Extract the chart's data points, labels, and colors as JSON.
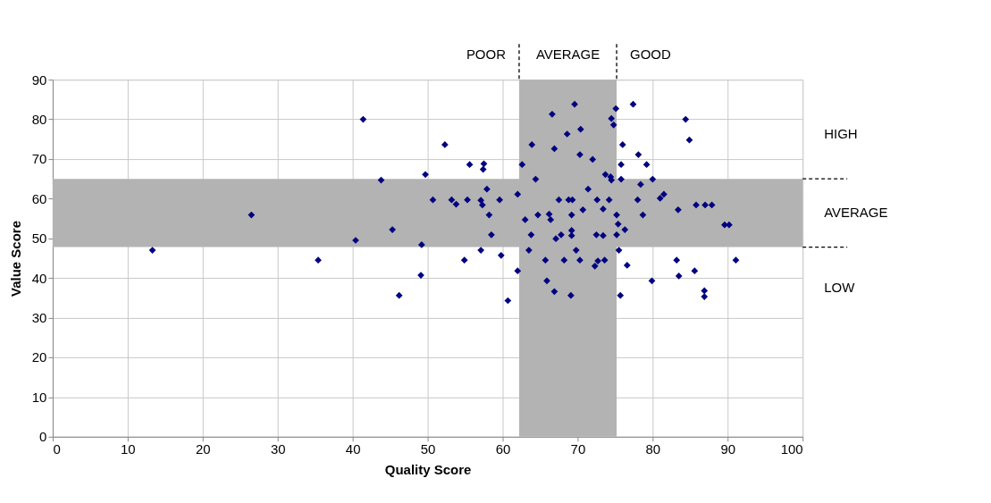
{
  "chart_data": {
    "type": "scatter",
    "xlabel": "Quality Score",
    "ylabel": "Value Score",
    "xlim": [
      0,
      100
    ],
    "xticks": [
      0,
      10,
      20,
      30,
      40,
      50,
      60,
      70,
      80,
      90,
      100
    ],
    "ylim": [
      0,
      90
    ],
    "yticks": [
      0,
      10,
      20,
      30,
      40,
      50,
      60,
      70,
      80,
      90
    ],
    "grid": true,
    "legend": false,
    "marker": "diamond",
    "bands": [
      {
        "axis": "x",
        "from": 62.2,
        "to": 75.2,
        "label": "AVERAGE",
        "color": "#b3b3b3"
      },
      {
        "axis": "y",
        "from": 47.8,
        "to": 65.0,
        "label": "AVERAGE",
        "color": "#b3b3b3"
      }
    ],
    "annotations": [
      "POOR",
      "GOOD",
      "HIGH",
      "LOW"
    ],
    "x": [
      13.3,
      26.5,
      41.4,
      52.3,
      55.6,
      57.5,
      57.4,
      49.7,
      43.8,
      57.9,
      50.7,
      53.2,
      53.8,
      55.3,
      57.1,
      57.3,
      59.6,
      58.2,
      45.3,
      58.5,
      40.4,
      49.2,
      57.1,
      59.8,
      54.9,
      35.4,
      49.1,
      46.2,
      60.7,
      69.6,
      66.6,
      75.1,
      77.4,
      74.5,
      74.8,
      70.4,
      68.6,
      63.9,
      66.9,
      76.0,
      70.3,
      72.0,
      78.1,
      79.2,
      62.6,
      75.8,
      73.7,
      74.4,
      74.5,
      75.8,
      64.4,
      80.0,
      71.4,
      78.4,
      62.0,
      67.5,
      68.8,
      69.3,
      72.6,
      74.2,
      78.0,
      81.0,
      81.5,
      83.4,
      70.7,
      73.4,
      64.7,
      66.2,
      66.4,
      69.2,
      75.2,
      78.7,
      63.0,
      75.4,
      76.3,
      63.8,
      67.1,
      67.8,
      69.2,
      69.2,
      72.5,
      73.4,
      75.2,
      63.5,
      69.8,
      75.5,
      65.7,
      68.2,
      70.3,
      72.7,
      73.6,
      72.3,
      76.6,
      83.2,
      62.0,
      79.9,
      83.5,
      65.9,
      66.9,
      69.1,
      75.7,
      84.4,
      84.9,
      85.8,
      87.0,
      87.9,
      89.6,
      90.2,
      91.1,
      85.6,
      86.9,
      86.9
    ],
    "series": [
      {
        "color": "#000080",
        "values": [
          47.0,
          55.9,
          80.0,
          73.6,
          68.6,
          68.8,
          67.4,
          66.1,
          64.7,
          62.4,
          59.7,
          59.7,
          58.6,
          59.7,
          59.6,
          58.4,
          59.7,
          55.9,
          52.2,
          50.9,
          49.5,
          48.4,
          47.0,
          45.7,
          44.5,
          44.5,
          40.7,
          35.6,
          34.3,
          83.8,
          81.3,
          82.7,
          83.8,
          80.2,
          78.6,
          77.5,
          76.3,
          73.6,
          72.6,
          73.6,
          71.1,
          69.9,
          71.1,
          68.6,
          68.6,
          68.6,
          66.1,
          65.5,
          64.7,
          64.9,
          64.9,
          64.9,
          62.4,
          63.6,
          61.1,
          59.7,
          59.7,
          59.7,
          59.7,
          59.7,
          59.7,
          60.1,
          61.1,
          57.2,
          57.2,
          57.4,
          55.9,
          56.1,
          54.7,
          55.9,
          55.9,
          55.9,
          54.7,
          53.6,
          52.2,
          50.9,
          49.9,
          50.9,
          52.0,
          50.7,
          50.9,
          50.7,
          50.9,
          47.0,
          47.0,
          47.0,
          44.5,
          44.5,
          44.5,
          44.3,
          44.5,
          43.0,
          43.2,
          44.5,
          41.8,
          39.3,
          40.5,
          39.3,
          36.6,
          35.6,
          35.6,
          80.0,
          74.8,
          58.4,
          58.4,
          58.4,
          53.4,
          53.4,
          44.5,
          41.8,
          36.8,
          35.3
        ]
      }
    ]
  }
}
